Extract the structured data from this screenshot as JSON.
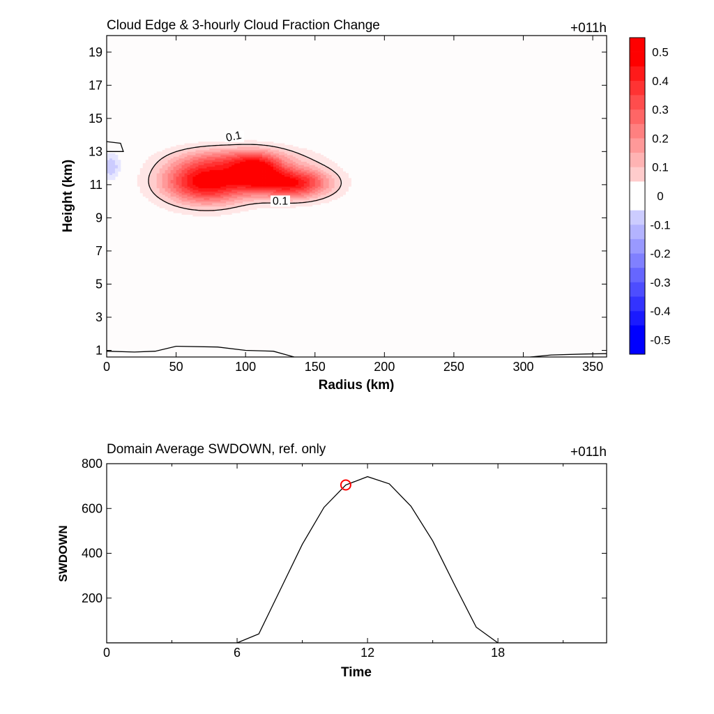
{
  "chart_data": [
    {
      "type": "heatmap",
      "title": "Cloud Edge & 3-hourly Cloud Fraction Change",
      "time_label": "+011h",
      "xlabel": "Radius (km)",
      "ylabel": "Height (km)",
      "xlim": [
        0,
        360
      ],
      "ylim": [
        0.6,
        20
      ],
      "xticks": [
        "0",
        "50",
        "100",
        "150",
        "200",
        "250",
        "300",
        "350"
      ],
      "yticks": [
        "1",
        "3",
        "5",
        "7",
        "9",
        "11",
        "13",
        "15",
        "17",
        "19"
      ],
      "colorbar": {
        "min": -0.55,
        "max": 0.55,
        "labels": [
          "0.5",
          "0.4",
          "0.3",
          "0.2",
          "0.1",
          "0",
          "-0.1",
          "-0.2",
          "-0.3",
          "-0.4",
          "-0.5"
        ],
        "high_color": "#ff0000",
        "low_color": "#0000ff",
        "mid_color": "#ffffff"
      },
      "contour_label": "0.1",
      "contour_level": 0.1,
      "features": [
        {
          "kind": "positive",
          "center_radius_km": 72,
          "center_height_km": 11.2,
          "peak": 0.55
        },
        {
          "kind": "positive",
          "center_radius_km": 135,
          "center_height_km": 11.1,
          "peak": 0.48
        },
        {
          "kind": "negative",
          "center_radius_km": 3,
          "center_height_km": 12.1,
          "peak": -0.15
        }
      ]
    },
    {
      "type": "line",
      "title": "Domain Average SWDOWN, ref. only",
      "time_label": "+011h",
      "xlabel": "Time",
      "ylabel": "SWDOWN",
      "xlim": [
        0,
        23
      ],
      "ylim": [
        0,
        800
      ],
      "xticks": [
        "0",
        "6",
        "12",
        "18"
      ],
      "yticks": [
        "200",
        "400",
        "600",
        "800"
      ],
      "line_color": "#000000",
      "marker_color": "#ff0000",
      "series": [
        {
          "x": [
            0,
            1,
            2,
            3,
            4,
            5,
            6,
            7,
            8,
            9,
            10,
            11,
            12,
            13,
            14,
            15,
            16,
            17,
            18,
            19,
            20,
            21,
            22,
            23
          ],
          "values": [
            0,
            0,
            0,
            0,
            0,
            0,
            0,
            40,
            240,
            440,
            605,
            705,
            742,
            710,
            610,
            455,
            260,
            70,
            0,
            0,
            0,
            0,
            0,
            0
          ]
        }
      ],
      "marker": {
        "x": 11,
        "y": 705
      }
    }
  ]
}
